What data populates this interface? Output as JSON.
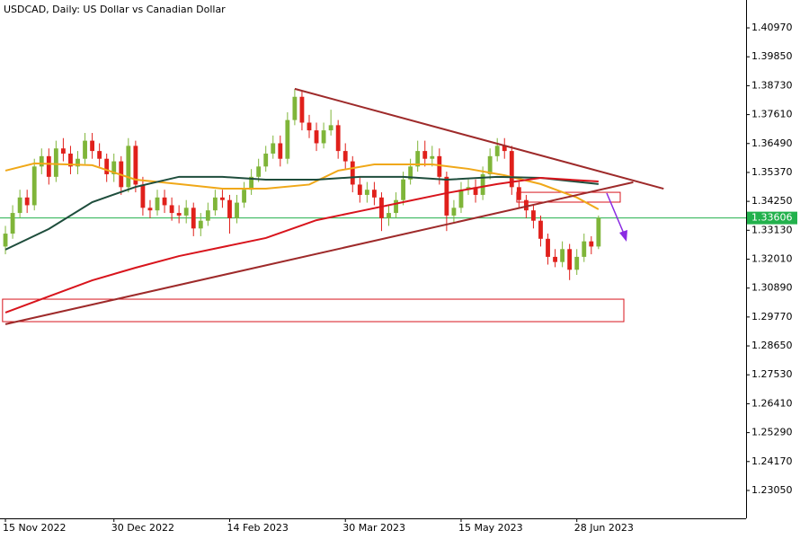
{
  "chart_data": {
    "type": "candlestick",
    "title": "USDCAD, Daily:  US Dollar vs Canadian Dollar",
    "categories": [
      "15 Nov 2022",
      null,
      null,
      null,
      null,
      null,
      null,
      null,
      null,
      null,
      null,
      null,
      null,
      null,
      null,
      "30 Dec 2022",
      null,
      null,
      null,
      null,
      null,
      null,
      null,
      null,
      null,
      null,
      null,
      null,
      null,
      null,
      null,
      "14 Feb 2023",
      null,
      null,
      null,
      null,
      null,
      null,
      null,
      null,
      null,
      null,
      null,
      null,
      null,
      null,
      null,
      "30 Mar 2023",
      null,
      null,
      null,
      null,
      null,
      null,
      null,
      null,
      null,
      null,
      null,
      null,
      null,
      null,
      null,
      "15 May 2023",
      null,
      null,
      null,
      null,
      null,
      null,
      null,
      null,
      null,
      null,
      null,
      null,
      null,
      null,
      null,
      "28 Jun 2023",
      null,
      null,
      null
    ],
    "open": [
      1.325,
      1.33,
      1.338,
      1.344,
      1.341,
      1.356,
      1.36,
      1.352,
      1.363,
      1.361,
      1.356,
      1.359,
      1.366,
      1.362,
      1.359,
      1.353,
      1.358,
      1.348,
      1.364,
      1.349,
      1.34,
      1.339,
      1.344,
      1.341,
      1.338,
      1.337,
      1.34,
      1.332,
      1.335,
      1.339,
      1.344,
      1.343,
      1.336,
      1.342,
      1.347,
      1.352,
      1.356,
      1.361,
      1.365,
      1.359,
      1.374,
      1.383,
      1.373,
      1.37,
      1.365,
      1.37,
      1.372,
      1.362,
      1.358,
      1.349,
      1.345,
      1.347,
      1.344,
      1.336,
      1.338,
      1.343,
      1.351,
      1.356,
      1.362,
      1.359,
      1.36,
      1.352,
      1.337,
      1.34,
      1.347,
      1.348,
      1.345,
      1.353,
      1.36,
      1.364,
      1.362,
      1.348,
      1.343,
      1.339,
      1.335,
      1.328,
      1.321,
      1.319,
      1.324,
      1.316,
      1.321,
      1.327,
      1.325
    ],
    "high": [
      1.333,
      1.341,
      1.347,
      1.347,
      1.359,
      1.363,
      1.363,
      1.366,
      1.367,
      1.364,
      1.362,
      1.369,
      1.369,
      1.365,
      1.361,
      1.361,
      1.36,
      1.367,
      1.366,
      1.352,
      1.343,
      1.347,
      1.347,
      1.344,
      1.341,
      1.343,
      1.342,
      1.338,
      1.342,
      1.347,
      1.347,
      1.345,
      1.345,
      1.35,
      1.355,
      1.359,
      1.364,
      1.368,
      1.368,
      1.377,
      1.386,
      1.385,
      1.376,
      1.373,
      1.373,
      1.378,
      1.374,
      1.365,
      1.36,
      1.352,
      1.35,
      1.35,
      1.346,
      1.341,
      1.346,
      1.354,
      1.359,
      1.366,
      1.366,
      1.364,
      1.363,
      1.354,
      1.343,
      1.35,
      1.351,
      1.351,
      1.356,
      1.363,
      1.367,
      1.367,
      1.364,
      1.35,
      1.345,
      1.341,
      1.337,
      1.33,
      1.324,
      1.327,
      1.326,
      1.324,
      1.33,
      1.329,
      1.337
    ],
    "low": [
      1.322,
      1.328,
      1.336,
      1.338,
      1.339,
      1.353,
      1.349,
      1.35,
      1.358,
      1.353,
      1.353,
      1.357,
      1.359,
      1.356,
      1.35,
      1.35,
      1.345,
      1.346,
      1.346,
      1.337,
      1.336,
      1.337,
      1.338,
      1.335,
      1.334,
      1.334,
      1.329,
      1.329,
      1.333,
      1.337,
      1.34,
      1.33,
      1.334,
      1.34,
      1.345,
      1.35,
      1.354,
      1.359,
      1.356,
      1.357,
      1.372,
      1.37,
      1.367,
      1.362,
      1.363,
      1.368,
      1.359,
      1.355,
      1.346,
      1.342,
      1.342,
      1.341,
      1.331,
      1.333,
      1.336,
      1.341,
      1.349,
      1.354,
      1.356,
      1.356,
      1.349,
      1.331,
      1.334,
      1.338,
      1.345,
      1.342,
      1.343,
      1.351,
      1.358,
      1.359,
      1.345,
      1.34,
      1.336,
      1.332,
      1.325,
      1.318,
      1.317,
      1.317,
      1.312,
      1.314,
      1.319,
      1.322,
      1.324
    ],
    "close": [
      1.33,
      1.338,
      1.344,
      1.341,
      1.356,
      1.36,
      1.352,
      1.363,
      1.361,
      1.356,
      1.359,
      1.366,
      1.362,
      1.359,
      1.353,
      1.358,
      1.348,
      1.364,
      1.349,
      1.34,
      1.339,
      1.344,
      1.341,
      1.338,
      1.337,
      1.34,
      1.332,
      1.335,
      1.339,
      1.344,
      1.343,
      1.336,
      1.342,
      1.347,
      1.352,
      1.356,
      1.361,
      1.365,
      1.359,
      1.374,
      1.383,
      1.373,
      1.37,
      1.365,
      1.37,
      1.372,
      1.362,
      1.358,
      1.349,
      1.345,
      1.347,
      1.344,
      1.336,
      1.338,
      1.343,
      1.351,
      1.356,
      1.362,
      1.359,
      1.36,
      1.352,
      1.337,
      1.34,
      1.347,
      1.348,
      1.345,
      1.353,
      1.36,
      1.364,
      1.362,
      1.348,
      1.343,
      1.339,
      1.335,
      1.328,
      1.321,
      1.319,
      1.324,
      1.316,
      1.321,
      1.327,
      1.325,
      1.33606
    ],
    "up_color": "#7fb539",
    "down_color": "#e0201b",
    "xlim": [
      -0.75,
      102.4
    ],
    "ylim": [
      1.2197,
      1.4205
    ],
    "yticks": [
      {
        "value": 1.4097,
        "label": "1.40970"
      },
      {
        "value": 1.3985,
        "label": "1.39850"
      },
      {
        "value": 1.3873,
        "label": "1.38730"
      },
      {
        "value": 1.3761,
        "label": "1.37610"
      },
      {
        "value": 1.3649,
        "label": "1.36490"
      },
      {
        "value": 1.3537,
        "label": "1.35370"
      },
      {
        "value": 1.3425,
        "label": "1.34250"
      },
      {
        "value": 1.3313,
        "label": "1.33130"
      },
      {
        "value": 1.3201,
        "label": "1.32010"
      },
      {
        "value": 1.3089,
        "label": "1.30890"
      },
      {
        "value": 1.2977,
        "label": "1.29770"
      },
      {
        "value": 1.2865,
        "label": "1.28650"
      },
      {
        "value": 1.2753,
        "label": "1.27530"
      },
      {
        "value": 1.2641,
        "label": "1.26410"
      },
      {
        "value": 1.2529,
        "label": "1.25290"
      },
      {
        "value": 1.2417,
        "label": "1.24170"
      },
      {
        "value": 1.2305,
        "label": "1.23050"
      }
    ],
    "overlays": [
      {
        "color": "#f0a818",
        "x": [
          0,
          4,
          12,
          18,
          24,
          30,
          36,
          42,
          46,
          51,
          59,
          64,
          69,
          74,
          79,
          82
        ],
        "values": [
          1.3544,
          1.3572,
          1.3565,
          1.3509,
          1.3492,
          1.3474,
          1.3474,
          1.349,
          1.3544,
          1.3568,
          1.3568,
          1.3551,
          1.3526,
          1.3492,
          1.344,
          1.3394
        ]
      },
      {
        "color": "#1e4d3c",
        "x": [
          0,
          6,
          12,
          18,
          24,
          30,
          36,
          43,
          49,
          55,
          61,
          68,
          74,
          82
        ],
        "values": [
          1.3238,
          1.3318,
          1.3422,
          1.3481,
          1.352,
          1.352,
          1.3509,
          1.3509,
          1.352,
          1.352,
          1.3509,
          1.352,
          1.3516,
          1.3492
        ]
      },
      {
        "color": "#d8141c",
        "x": [
          0,
          6,
          12,
          18,
          24,
          30,
          36,
          43,
          49,
          55,
          61,
          68,
          74,
          82
        ],
        "values": [
          1.2994,
          1.3057,
          1.3119,
          1.3168,
          1.3213,
          1.3248,
          1.3283,
          1.3352,
          1.3387,
          1.3422,
          1.3457,
          1.3492,
          1.3516,
          1.3502
        ]
      }
    ],
    "trendlines": [
      {
        "color": "#9e2a2a",
        "x": [
          40,
          91
        ],
        "values": [
          1.3861,
          1.3474
        ]
      },
      {
        "color": "#9e2a2a",
        "x": [
          0,
          86.8
        ],
        "values": [
          1.2949,
          1.3499
        ]
      }
    ],
    "zones": [
      {
        "color": "#d8141c",
        "x": [
          -0.4,
          85.5
        ],
        "values": [
          1.3046,
          1.2959
        ]
      },
      {
        "color": "#d8141c",
        "x": [
          70.7,
          85
        ],
        "values": [
          1.346,
          1.3422
        ]
      }
    ],
    "current_price": 1.33606,
    "current_price_color": "#22b14c"
  }
}
